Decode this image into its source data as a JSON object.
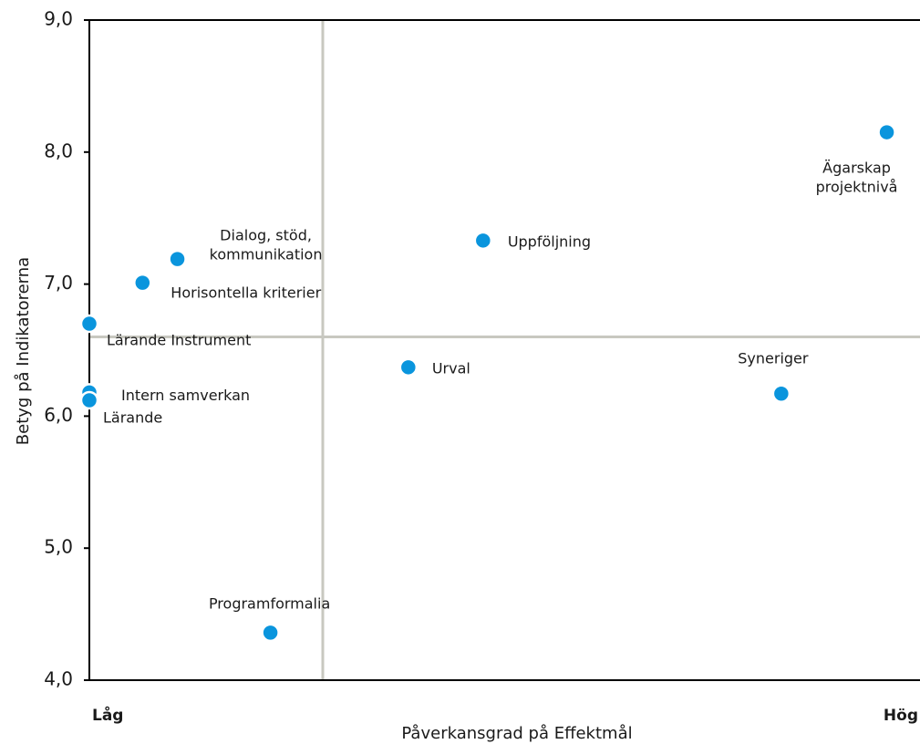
{
  "chart_data": {
    "type": "scatter",
    "x_label": "Påverkansgrad på Effektmål",
    "y_label": "Betyg på Indikatorerna",
    "xlim": [
      0,
      10
    ],
    "xticks": [
      {
        "value": 0,
        "label": "Låg"
      },
      {
        "value": 10,
        "label": "Hög"
      }
    ],
    "ylim": [
      4,
      9
    ],
    "yticks": [
      {
        "value": 4,
        "label": "4,0"
      },
      {
        "value": 5,
        "label": "5,0"
      },
      {
        "value": 6,
        "label": "6,0"
      },
      {
        "value": 7,
        "label": "7,0"
      },
      {
        "value": 8,
        "label": "8,0"
      },
      {
        "value": 9,
        "label": "9,0"
      }
    ],
    "x_ref": 2.81,
    "y_ref": 6.6,
    "color": "#0a95dd",
    "labels": [
      [
        "Ägarskap",
        "projektnivå"
      ],
      [
        "Uppföljning"
      ],
      [
        "Dialog, stöd,",
        "kommunikation"
      ],
      [
        "Horisontella kriterier"
      ],
      [
        "Lärande Instrument"
      ],
      [
        "Urval"
      ],
      [
        "Intern samverkan"
      ],
      [
        "Lärande"
      ],
      [
        "Syneriger"
      ],
      [
        "Programformalia"
      ]
    ],
    "x": [
      9.6,
      4.74,
      1.06,
      0.64,
      0,
      3.84,
      0,
      0,
      8.33,
      2.18
    ],
    "y": [
      8.15,
      7.33,
      7.19,
      7.01,
      6.7,
      6.37,
      6.18,
      6.12,
      6.17,
      4.36
    ]
  }
}
